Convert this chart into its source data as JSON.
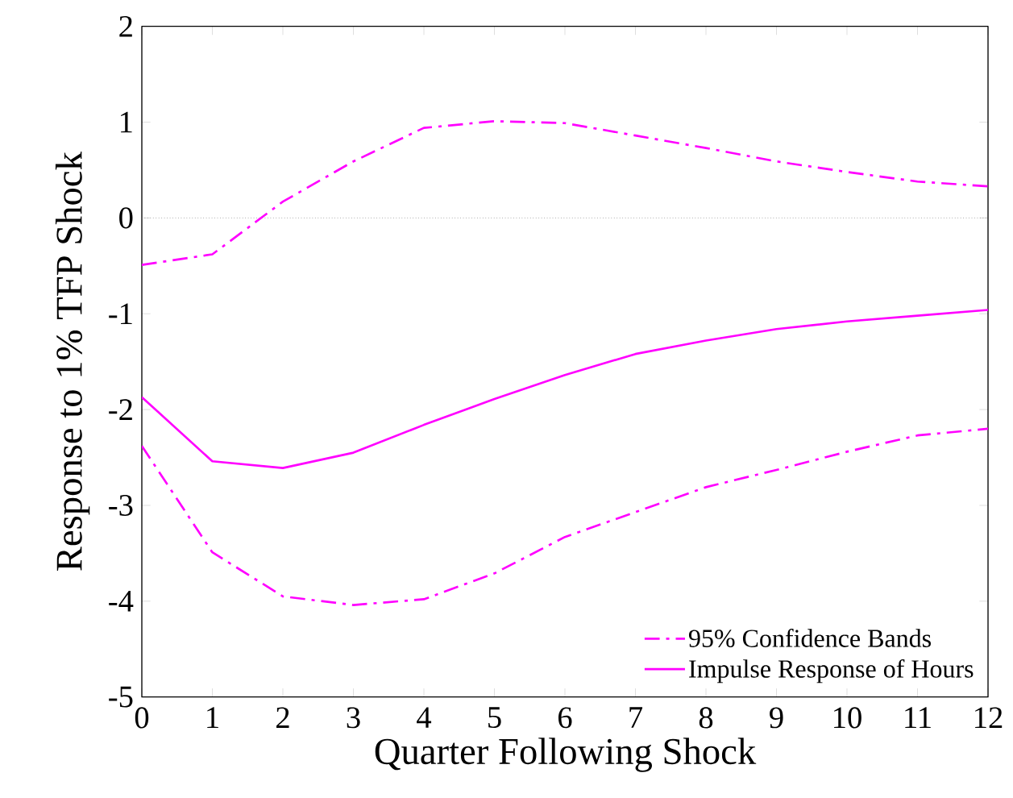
{
  "chart_data": {
    "type": "line",
    "xlabel": "Quarter Following Shock",
    "ylabel": "Response to 1% TFP Shock",
    "x": [
      0,
      1,
      2,
      3,
      4,
      5,
      6,
      7,
      8,
      9,
      10,
      11,
      12
    ],
    "series": [
      {
        "name": "95% Confidence Bands",
        "color": "#ff00ff",
        "line_style": "dashdot",
        "values": [
          -0.49,
          -0.38,
          0.17,
          0.59,
          0.94,
          1.01,
          0.99,
          0.86,
          0.73,
          0.59,
          0.48,
          0.38,
          0.33
        ]
      },
      {
        "name": "Impulse Response of Hours",
        "color": "#ff00ff",
        "line_style": "solid",
        "values": [
          -1.87,
          -2.54,
          -2.61,
          -2.45,
          -2.16,
          -1.89,
          -1.64,
          -1.42,
          -1.28,
          -1.16,
          -1.08,
          -1.02,
          -0.96
        ]
      },
      {
        "color": "#ff00ff",
        "line_style": "dashdot",
        "values": [
          -2.38,
          -3.49,
          -3.95,
          -4.04,
          -3.98,
          -3.71,
          -3.33,
          -3.07,
          -2.81,
          -2.63,
          -2.44,
          -2.27,
          -2.2
        ]
      }
    ],
    "xlim": [
      0,
      12
    ],
    "ylim": [
      -5,
      2
    ],
    "xticks": [
      0,
      1,
      2,
      3,
      4,
      5,
      6,
      7,
      8,
      9,
      10,
      11,
      12
    ],
    "yticks": [
      -5,
      -4,
      -3,
      -2,
      -1,
      0,
      1,
      2
    ],
    "ref_lines": [
      {
        "axis": "y",
        "value": 0,
        "color": "#808080",
        "line_style": "dotted"
      }
    ],
    "grid": false,
    "legend": "bottom right"
  }
}
